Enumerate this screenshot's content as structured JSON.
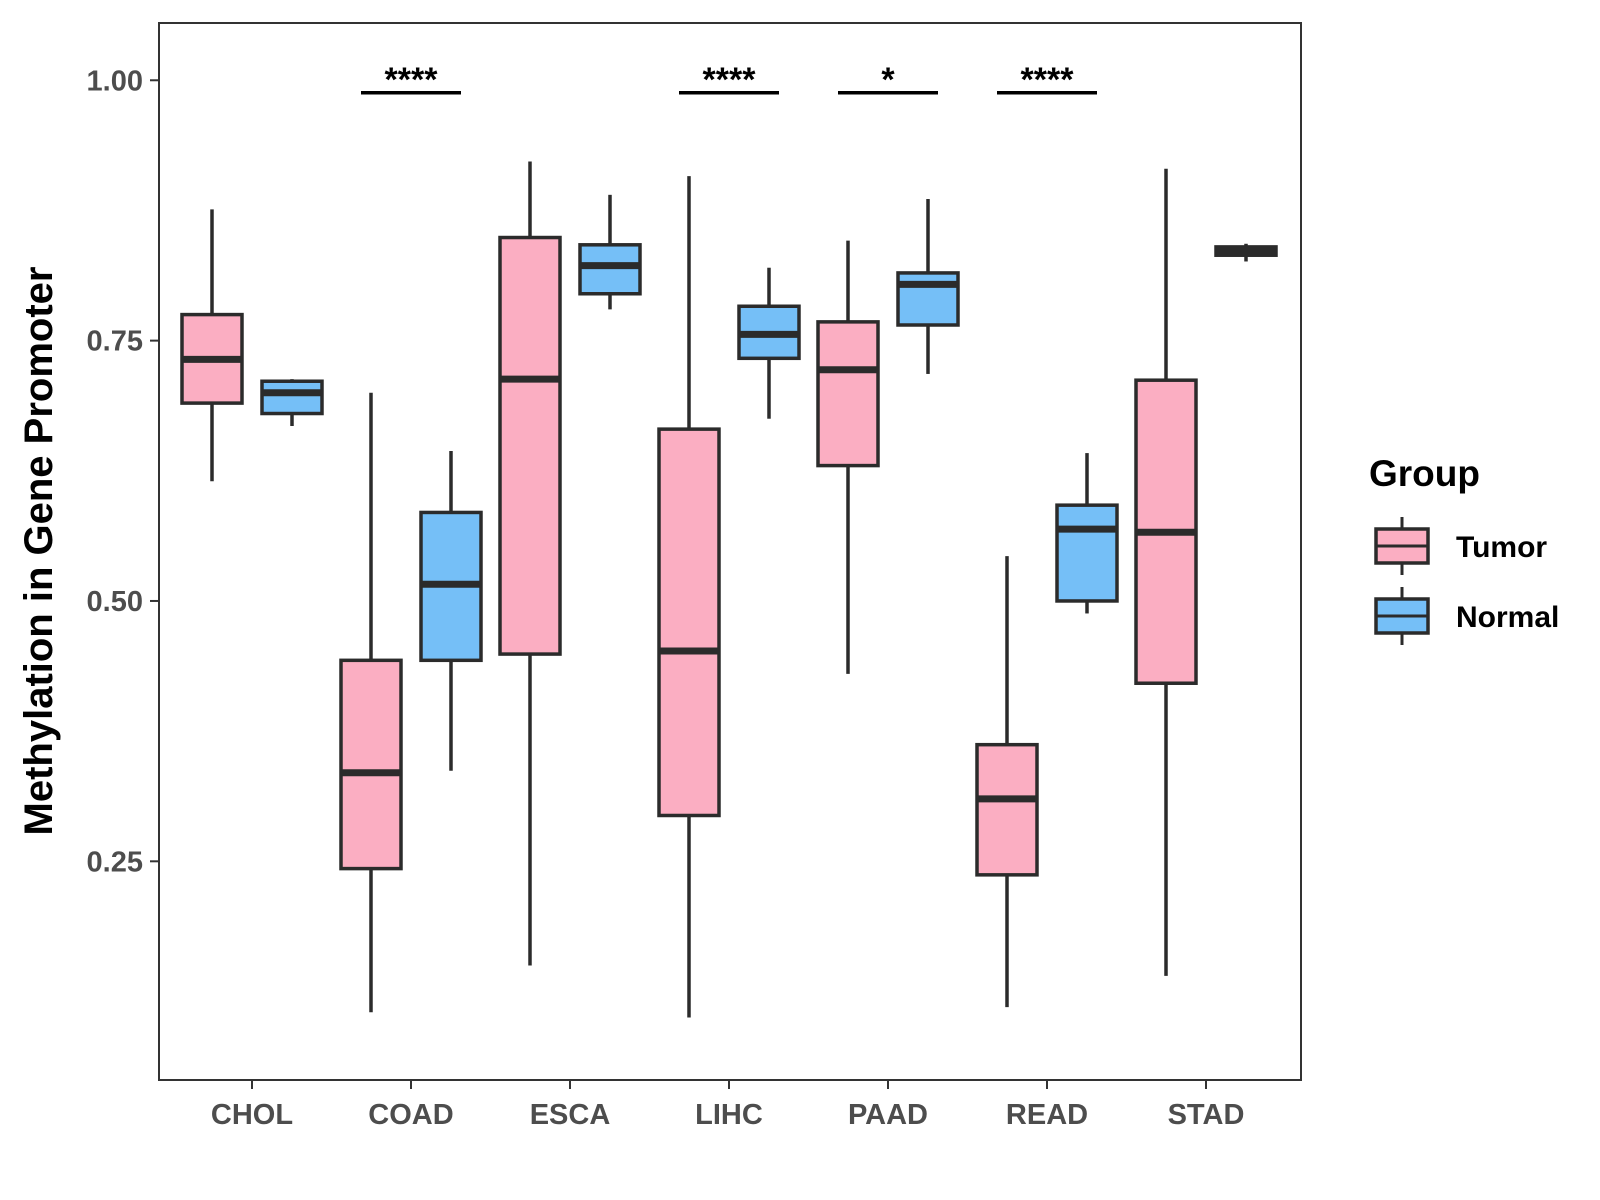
{
  "chart_data": {
    "type": "boxplot",
    "title": "",
    "xlabel": "",
    "ylabel": "Methylation in Gene Promoter",
    "ylim": [
      0.04,
      1.055
    ],
    "yticks": [
      0.25,
      0.5,
      0.75,
      1.0
    ],
    "ytick_labels": [
      "0.25",
      "0.50",
      "0.75",
      "1.00"
    ],
    "categories": [
      "CHOL",
      "COAD",
      "ESCA",
      "LIHC",
      "PAAD",
      "READ",
      "STAD"
    ],
    "legend": {
      "title": "Group",
      "position": "right",
      "entries": [
        {
          "name": "Tumor",
          "color": "#FBAEC2"
        },
        {
          "name": "Normal",
          "color": "#75BFF7"
        }
      ]
    },
    "series": [
      {
        "name": "Tumor",
        "color": "#FBAEC2",
        "boxes": [
          {
            "category": "CHOL",
            "min": 0.615,
            "q1": 0.69,
            "median": 0.732,
            "q3": 0.775,
            "max": 0.876
          },
          {
            "category": "COAD",
            "min": 0.105,
            "q1": 0.243,
            "median": 0.335,
            "q3": 0.443,
            "max": 0.7
          },
          {
            "category": "ESCA",
            "min": 0.15,
            "q1": 0.449,
            "median": 0.713,
            "q3": 0.849,
            "max": 0.922
          },
          {
            "category": "LIHC",
            "min": 0.1,
            "q1": 0.294,
            "median": 0.452,
            "q3": 0.665,
            "max": 0.908
          },
          {
            "category": "PAAD",
            "min": 0.43,
            "q1": 0.63,
            "median": 0.722,
            "q3": 0.768,
            "max": 0.846
          },
          {
            "category": "READ",
            "min": 0.11,
            "q1": 0.237,
            "median": 0.31,
            "q3": 0.362,
            "max": 0.543
          },
          {
            "category": "STAD",
            "min": 0.14,
            "q1": 0.421,
            "median": 0.566,
            "q3": 0.712,
            "max": 0.915
          }
        ]
      },
      {
        "name": "Normal",
        "color": "#75BFF7",
        "boxes": [
          {
            "category": "CHOL",
            "min": 0.668,
            "q1": 0.68,
            "median": 0.7,
            "q3": 0.711,
            "max": 0.713
          },
          {
            "category": "COAD",
            "min": 0.337,
            "q1": 0.443,
            "median": 0.516,
            "q3": 0.585,
            "max": 0.644
          },
          {
            "category": "ESCA",
            "min": 0.78,
            "q1": 0.795,
            "median": 0.822,
            "q3": 0.842,
            "max": 0.89
          },
          {
            "category": "LIHC",
            "min": 0.675,
            "q1": 0.733,
            "median": 0.756,
            "q3": 0.783,
            "max": 0.82
          },
          {
            "category": "PAAD",
            "min": 0.718,
            "q1": 0.765,
            "median": 0.804,
            "q3": 0.815,
            "max": 0.886
          },
          {
            "category": "READ",
            "min": 0.488,
            "q1": 0.5,
            "median": 0.569,
            "q3": 0.592,
            "max": 0.642
          },
          {
            "category": "STAD",
            "min": 0.826,
            "q1": 0.832,
            "median": 0.836,
            "q3": 0.84,
            "max": 0.843
          }
        ]
      }
    ],
    "annotations": [
      {
        "category": "COAD",
        "label": "****",
        "y": 0.988
      },
      {
        "category": "LIHC",
        "label": "****",
        "y": 0.988
      },
      {
        "category": "PAAD",
        "label": "*",
        "y": 0.988
      },
      {
        "category": "READ",
        "label": "****",
        "y": 0.988
      }
    ]
  }
}
